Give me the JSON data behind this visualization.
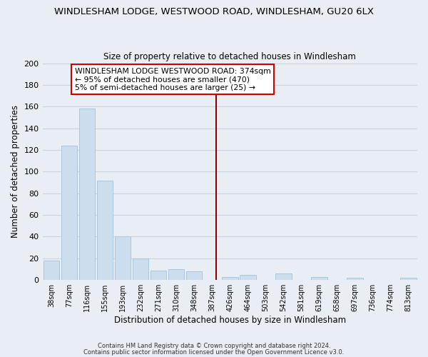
{
  "title": "WINDLESHAM LODGE, WESTWOOD ROAD, WINDLESHAM, GU20 6LX",
  "subtitle": "Size of property relative to detached houses in Windlesham",
  "xlabel": "Distribution of detached houses by size in Windlesham",
  "ylabel": "Number of detached properties",
  "bar_labels": [
    "38sqm",
    "77sqm",
    "116sqm",
    "155sqm",
    "193sqm",
    "232sqm",
    "271sqm",
    "310sqm",
    "348sqm",
    "387sqm",
    "426sqm",
    "464sqm",
    "503sqm",
    "542sqm",
    "581sqm",
    "619sqm",
    "658sqm",
    "697sqm",
    "736sqm",
    "774sqm",
    "813sqm"
  ],
  "bar_values": [
    18,
    124,
    158,
    92,
    40,
    20,
    9,
    10,
    8,
    0,
    3,
    5,
    0,
    6,
    0,
    3,
    0,
    2,
    0,
    0,
    2
  ],
  "bar_color": "#ccdded",
  "bar_edgecolor": "#a8c8df",
  "vline_x_index": 9.23,
  "vline_color": "#8b0000",
  "ylim": [
    0,
    200
  ],
  "yticks": [
    0,
    20,
    40,
    60,
    80,
    100,
    120,
    140,
    160,
    180,
    200
  ],
  "annotation_title": "WINDLESHAM LODGE WESTWOOD ROAD: 374sqm",
  "annotation_line1": "← 95% of detached houses are smaller (470)",
  "annotation_line2": "5% of semi-detached houses are larger (25) →",
  "annotation_box_color": "#ffffff",
  "annotation_box_edgecolor": "#cc0000",
  "footer1": "Contains HM Land Registry data © Crown copyright and database right 2024.",
  "footer2": "Contains public sector information licensed under the Open Government Licence v3.0.",
  "background_color": "#e8eef4",
  "plot_background_color": "#e8eef4",
  "grid_color": "#c8d4e0"
}
